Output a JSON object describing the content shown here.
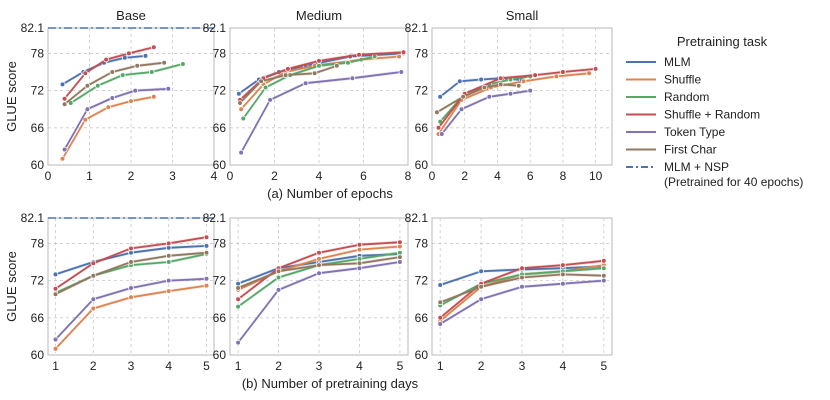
{
  "chart_data": {
    "type": "line",
    "ylabel": "GLUE score",
    "ylim": [
      60,
      82.1
    ],
    "yticks": [
      "60",
      "66",
      "72",
      "78",
      "82.1"
    ],
    "reference_line": {
      "name": "MLM + NSP (Pretrained for 40 epochs)",
      "value": 82.1
    },
    "rows": [
      {
        "caption": "(a) Number of epochs",
        "panels": [
          {
            "title": "Base",
            "xlim": [
              0,
              4
            ],
            "xticks": [
              "0",
              "1",
              "2",
              "3",
              "4"
            ],
            "show_reference": true,
            "series": [
              {
                "name": "MLM",
                "x": [
                  0.35,
                  0.85,
                  1.35,
                  1.85,
                  2.35
                ],
                "y": [
                  73.0,
                  75.0,
                  76.5,
                  77.3,
                  77.6
                ]
              },
              {
                "name": "Shuffle",
                "x": [
                  0.35,
                  0.9,
                  1.45,
                  2.0,
                  2.55
                ],
                "y": [
                  61.0,
                  67.3,
                  69.3,
                  70.3,
                  71.0
                ]
              },
              {
                "name": "Random",
                "x": [
                  0.55,
                  1.2,
                  1.8,
                  2.5,
                  3.25
                ],
                "y": [
                  70.0,
                  72.8,
                  74.5,
                  75.0,
                  76.3
                ]
              },
              {
                "name": "Shuffle + Random",
                "x": [
                  0.4,
                  0.9,
                  1.4,
                  1.95,
                  2.55
                ],
                "y": [
                  70.7,
                  74.8,
                  77.0,
                  78.0,
                  79.0
                ]
              },
              {
                "name": "Token Type",
                "x": [
                  0.4,
                  0.95,
                  1.55,
                  2.1,
                  2.9
                ],
                "y": [
                  62.5,
                  69.0,
                  70.8,
                  72.0,
                  72.3
                ]
              },
              {
                "name": "First Char",
                "x": [
                  0.4,
                  0.95,
                  1.55,
                  2.15,
                  2.8
                ],
                "y": [
                  69.8,
                  72.8,
                  75.0,
                  76.0,
                  76.5
                ]
              }
            ]
          },
          {
            "title": "Medium",
            "xlim": [
              0,
              8
            ],
            "xticks": [
              "0",
              "2",
              "4",
              "6",
              "8"
            ],
            "show_reference": false,
            "series": [
              {
                "name": "MLM",
                "x": [
                  0.4,
                  1.3,
                  2.2,
                  3.4,
                  5.4,
                  7.8
                ],
                "y": [
                  71.5,
                  73.8,
                  75.0,
                  76.0,
                  77.5,
                  78.0
                ]
              },
              {
                "name": "Shuffle",
                "x": [
                  0.5,
                  1.5,
                  2.5,
                  3.8,
                  5.9,
                  7.6
                ],
                "y": [
                  69.0,
                  73.0,
                  75.0,
                  76.0,
                  77.0,
                  77.5
                ]
              },
              {
                "name": "Random",
                "x": [
                  0.6,
                  1.6,
                  2.7,
                  4.0,
                  5.3,
                  6.5
                ],
                "y": [
                  67.5,
                  72.5,
                  74.5,
                  76.0,
                  76.5,
                  77.5
                ]
              },
              {
                "name": "Shuffle + Random",
                "x": [
                  0.45,
                  1.5,
                  2.6,
                  4.0,
                  5.8,
                  7.8
                ],
                "y": [
                  70.5,
                  74.0,
                  75.5,
                  76.8,
                  77.8,
                  78.2
                ]
              },
              {
                "name": "Token Type",
                "x": [
                  0.5,
                  1.8,
                  3.4,
                  5.5,
                  7.7
                ],
                "y": [
                  62.0,
                  70.5,
                  73.2,
                  74.0,
                  75.0
                ]
              },
              {
                "name": "First Char",
                "x": [
                  0.45,
                  1.4,
                  2.5,
                  3.8,
                  4.8
                ],
                "y": [
                  70.0,
                  73.5,
                  74.5,
                  74.8,
                  76.0
                ]
              }
            ]
          },
          {
            "title": "Small",
            "xlim": [
              0,
              11
            ],
            "xticks": [
              "0",
              "2",
              "4",
              "6",
              "8",
              "10"
            ],
            "show_reference": false,
            "series": [
              {
                "name": "MLM",
                "x": [
                  0.5,
                  1.7,
                  3.0,
                  4.3,
                  5.5
                ],
                "y": [
                  71.0,
                  73.5,
                  73.8,
                  74.0,
                  73.7
                ]
              },
              {
                "name": "Shuffle",
                "x": [
                  0.4,
                  1.8,
                  3.6,
                  5.6,
                  7.6,
                  9.6
                ],
                "y": [
                  65.0,
                  70.5,
                  72.5,
                  73.5,
                  74.3,
                  74.8
                ]
              },
              {
                "name": "Random",
                "x": [
                  0.5,
                  2.0,
                  3.5,
                  4.8,
                  6.0
                ],
                "y": [
                  67.0,
                  71.5,
                  73.0,
                  73.8,
                  74.3
                ]
              },
              {
                "name": "Shuffle + Random",
                "x": [
                  0.4,
                  2.0,
                  4.2,
                  6.3,
                  8.0,
                  10.0
                ],
                "y": [
                  66.0,
                  71.5,
                  74.0,
                  74.5,
                  75.0,
                  75.5
                ]
              },
              {
                "name": "Token Type",
                "x": [
                  0.6,
                  1.8,
                  3.5,
                  4.8,
                  6.0
                ],
                "y": [
                  65.0,
                  69.0,
                  71.0,
                  71.5,
                  72.0
                ]
              },
              {
                "name": "First Char",
                "x": [
                  0.3,
                  1.9,
                  3.2,
                  4.2,
                  5.3
                ],
                "y": [
                  68.5,
                  71.0,
                  72.5,
                  73.0,
                  72.8
                ]
              }
            ]
          }
        ]
      },
      {
        "caption": "(b) Number of pretraining days",
        "panels": [
          {
            "title": "",
            "xlim": [
              0.8,
              5.2
            ],
            "xticks": [
              "1",
              "2",
              "3",
              "4",
              "5"
            ],
            "show_reference": true,
            "series": [
              {
                "name": "MLM",
                "x": [
                  1,
                  2,
                  3,
                  4,
                  5
                ],
                "y": [
                  73.0,
                  75.0,
                  76.5,
                  77.3,
                  77.6
                ]
              },
              {
                "name": "Shuffle",
                "x": [
                  1,
                  2,
                  3,
                  4,
                  5
                ],
                "y": [
                  61.0,
                  67.5,
                  69.3,
                  70.3,
                  71.2
                ]
              },
              {
                "name": "Random",
                "x": [
                  1,
                  2,
                  3,
                  4,
                  5
                ],
                "y": [
                  70.0,
                  72.8,
                  74.5,
                  75.0,
                  76.3
                ]
              },
              {
                "name": "Shuffle + Random",
                "x": [
                  1,
                  2,
                  3,
                  4,
                  5
                ],
                "y": [
                  70.7,
                  74.8,
                  77.2,
                  78.0,
                  79.0
                ]
              },
              {
                "name": "Token Type",
                "x": [
                  1,
                  2,
                  3,
                  4,
                  5
                ],
                "y": [
                  62.5,
                  69.0,
                  70.8,
                  72.0,
                  72.3
                ]
              },
              {
                "name": "First Char",
                "x": [
                  1,
                  2,
                  3,
                  4,
                  5
                ],
                "y": [
                  69.8,
                  72.8,
                  75.0,
                  76.0,
                  76.5
                ]
              }
            ]
          },
          {
            "title": "",
            "xlim": [
              0.8,
              5.2
            ],
            "xticks": [
              "1",
              "2",
              "3",
              "4",
              "5"
            ],
            "show_reference": false,
            "series": [
              {
                "name": "MLM",
                "x": [
                  1,
                  2,
                  3,
                  4,
                  5
                ],
                "y": [
                  71.5,
                  74.0,
                  75.0,
                  76.0,
                  76.3
                ]
              },
              {
                "name": "Shuffle",
                "x": [
                  1,
                  2,
                  3,
                  4,
                  5
                ],
                "y": [
                  70.5,
                  73.5,
                  75.5,
                  77.0,
                  77.5
                ]
              },
              {
                "name": "Random",
                "x": [
                  1,
                  2,
                  3,
                  4,
                  5
                ],
                "y": [
                  67.8,
                  72.5,
                  74.5,
                  75.5,
                  76.5
                ]
              },
              {
                "name": "Shuffle + Random",
                "x": [
                  1,
                  2,
                  3,
                  4,
                  5
                ],
                "y": [
                  69.0,
                  74.0,
                  76.5,
                  77.8,
                  78.2
                ]
              },
              {
                "name": "Token Type",
                "x": [
                  1,
                  2,
                  3,
                  4,
                  5
                ],
                "y": [
                  62.0,
                  70.5,
                  73.2,
                  74.0,
                  75.0
                ]
              },
              {
                "name": "First Char",
                "x": [
                  1,
                  2,
                  3,
                  4,
                  5
                ],
                "y": [
                  70.8,
                  73.5,
                  74.5,
                  74.8,
                  75.8
                ]
              }
            ]
          },
          {
            "title": "",
            "xlim": [
              0.8,
              5.2
            ],
            "xticks": [
              "1",
              "2",
              "3",
              "4",
              "5"
            ],
            "show_reference": false,
            "series": [
              {
                "name": "MLM",
                "x": [
                  1,
                  2,
                  3,
                  4,
                  5
                ],
                "y": [
                  71.3,
                  73.5,
                  73.8,
                  74.0,
                  74.3
                ]
              },
              {
                "name": "Shuffle",
                "x": [
                  1,
                  2,
                  3,
                  4,
                  5
                ],
                "y": [
                  65.5,
                  71.0,
                  73.0,
                  73.5,
                  74.5
                ]
              },
              {
                "name": "Random",
                "x": [
                  1,
                  2,
                  3,
                  4,
                  5
                ],
                "y": [
                  68.0,
                  71.5,
                  73.0,
                  73.5,
                  74.0
                ]
              },
              {
                "name": "Shuffle + Random",
                "x": [
                  1,
                  2,
                  3,
                  4,
                  5
                ],
                "y": [
                  66.0,
                  71.5,
                  74.0,
                  74.5,
                  75.2
                ]
              },
              {
                "name": "Token Type",
                "x": [
                  1,
                  2,
                  3,
                  4,
                  5
                ],
                "y": [
                  65.0,
                  69.0,
                  71.0,
                  71.5,
                  72.0
                ]
              },
              {
                "name": "First Char",
                "x": [
                  1,
                  2,
                  3,
                  4,
                  5
                ],
                "y": [
                  68.5,
                  71.0,
                  72.5,
                  73.0,
                  72.8
                ]
              }
            ]
          }
        ]
      }
    ],
    "legend": {
      "title": "Pretraining task",
      "position": "right",
      "items": [
        {
          "name": "MLM",
          "color": "#4c72b0",
          "style": "solid"
        },
        {
          "name": "Shuffle",
          "color": "#dd8452",
          "style": "solid"
        },
        {
          "name": "Random",
          "color": "#55a868",
          "style": "solid"
        },
        {
          "name": "Shuffle + Random",
          "color": "#c44e52",
          "style": "solid"
        },
        {
          "name": "Token Type",
          "color": "#8172b3",
          "style": "solid"
        },
        {
          "name": "First Char",
          "color": "#937860",
          "style": "solid"
        },
        {
          "name": "MLM + NSP",
          "color": "#4c72b0",
          "style": "dashdot",
          "subtext": "(Pretrained for 40 epochs)"
        }
      ]
    }
  }
}
